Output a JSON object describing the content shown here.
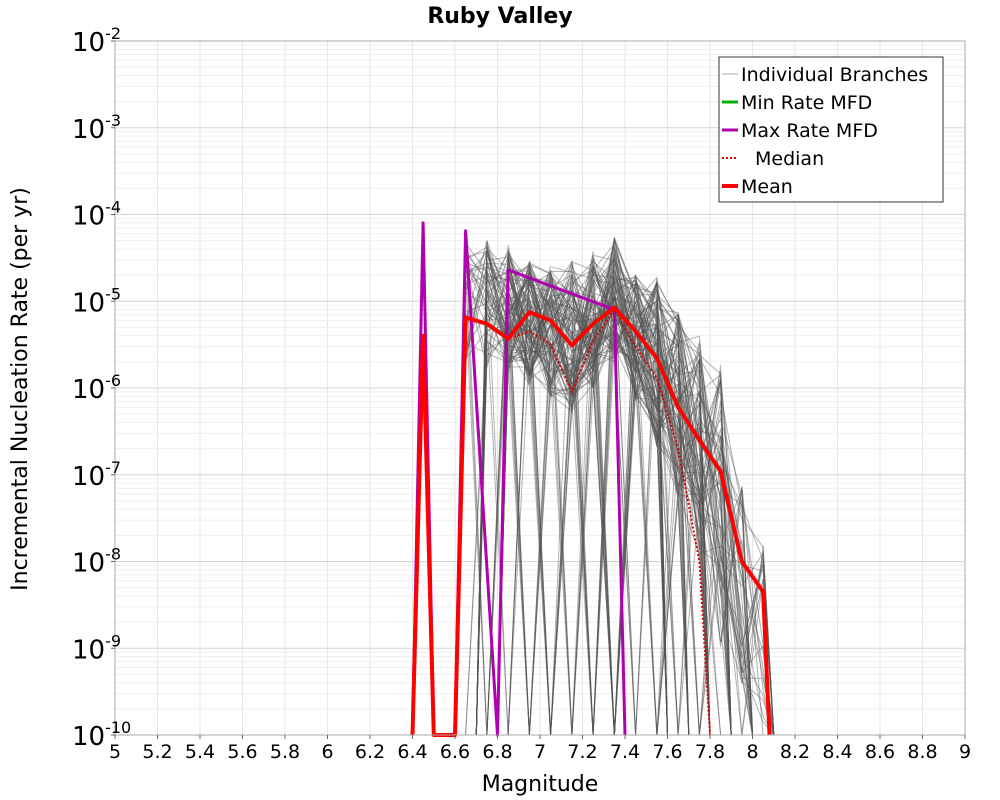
{
  "chart_data": {
    "type": "line",
    "title": "Ruby Valley",
    "xlabel": "Magnitude",
    "ylabel": "Incremental Nucleation Rate (per yr)",
    "xlim": [
      5,
      9
    ],
    "ylim_log10": [
      -10,
      -2
    ],
    "y_scale": "log",
    "grid": true,
    "legend_position": "top-right",
    "x_ticks": [
      5,
      5.2,
      5.4,
      5.6,
      5.8,
      6,
      6.2,
      6.4,
      6.6,
      6.8,
      7,
      7.2,
      7.4,
      7.6,
      7.8,
      8,
      8.2,
      8.4,
      8.6,
      8.8,
      9
    ],
    "y_tick_exponents": [
      -10,
      -9,
      -8,
      -7,
      -6,
      -5,
      -4,
      -3,
      -2
    ],
    "legend": [
      {
        "label": "Individual Branches",
        "color": "#aaaaaa",
        "style": "thin"
      },
      {
        "label": "Min Rate MFD",
        "color": "#00b000",
        "style": "solid"
      },
      {
        "label": "Max Rate MFD",
        "color": "#b000b0",
        "style": "solid"
      },
      {
        "label": "Median",
        "color": "#e00000",
        "style": "dotted"
      },
      {
        "label": "Mean",
        "color": "#ff0000",
        "style": "thick"
      }
    ],
    "series": [
      {
        "name": "Max Rate MFD",
        "color": "#b000b0",
        "points": [
          [
            6.4,
            1e-10
          ],
          [
            6.45,
            8e-05
          ],
          [
            6.5,
            1e-10
          ],
          [
            6.6,
            1e-10
          ],
          [
            6.65,
            6.5e-05
          ],
          [
            6.8,
            1e-10
          ],
          [
            6.85,
            2.3e-05
          ],
          [
            7.35,
            8e-06
          ],
          [
            7.4,
            1e-10
          ]
        ]
      },
      {
        "name": "Median",
        "color": "#e00000",
        "points": [
          [
            6.4,
            1e-10
          ],
          [
            6.45,
            4e-06
          ],
          [
            6.5,
            1e-10
          ],
          [
            6.6,
            1e-10
          ],
          [
            6.65,
            6.5e-06
          ],
          [
            6.75,
            5.5e-06
          ],
          [
            6.85,
            3.7e-06
          ],
          [
            6.95,
            4.5e-06
          ],
          [
            7.05,
            3.2e-06
          ],
          [
            7.15,
            9e-07
          ],
          [
            7.25,
            3.5e-06
          ],
          [
            7.35,
            8e-06
          ],
          [
            7.45,
            3e-06
          ],
          [
            7.55,
            1.3e-06
          ],
          [
            7.65,
            2e-07
          ],
          [
            7.75,
            1e-08
          ],
          [
            7.8,
            1e-10
          ]
        ]
      },
      {
        "name": "Mean",
        "color": "#ff0000",
        "points": [
          [
            6.4,
            1e-10
          ],
          [
            6.45,
            4e-06
          ],
          [
            6.5,
            1e-10
          ],
          [
            6.6,
            1e-10
          ],
          [
            6.65,
            6.5e-06
          ],
          [
            6.75,
            5.5e-06
          ],
          [
            6.85,
            3.7e-06
          ],
          [
            6.95,
            7.5e-06
          ],
          [
            7.05,
            6e-06
          ],
          [
            7.15,
            3.1e-06
          ],
          [
            7.25,
            5.5e-06
          ],
          [
            7.35,
            8.5e-06
          ],
          [
            7.45,
            4.5e-06
          ],
          [
            7.55,
            2.2e-06
          ],
          [
            7.65,
            6e-07
          ],
          [
            7.75,
            2.5e-07
          ],
          [
            7.85,
            1.1e-07
          ],
          [
            7.95,
            1e-08
          ],
          [
            8.05,
            4.5e-09
          ],
          [
            8.08,
            1e-10
          ]
        ]
      }
    ],
    "branch_envelope": {
      "name": "Individual Branches",
      "color": "#555555",
      "count": 120,
      "x_range": [
        6.65,
        8.05
      ],
      "upper": [
        [
          6.65,
          6e-05
        ],
        [
          6.85,
          5e-05
        ],
        [
          6.95,
          3e-05
        ],
        [
          7.05,
          2.5e-05
        ],
        [
          7.15,
          3e-05
        ],
        [
          7.25,
          4e-05
        ],
        [
          7.35,
          5.5e-05
        ],
        [
          7.45,
          2e-05
        ],
        [
          7.55,
          2e-05
        ],
        [
          7.65,
          8e-06
        ],
        [
          7.75,
          4e-06
        ],
        [
          7.85,
          2e-06
        ],
        [
          7.95,
          8e-08
        ],
        [
          8.05,
          2e-08
        ]
      ],
      "lower": [
        [
          6.65,
          2e-06
        ],
        [
          6.85,
          1.5e-06
        ],
        [
          6.95,
          1e-06
        ],
        [
          7.05,
          8e-07
        ],
        [
          7.15,
          5e-07
        ],
        [
          7.25,
          9e-07
        ],
        [
          7.35,
          2e-06
        ],
        [
          7.45,
          7e-07
        ],
        [
          7.55,
          2e-07
        ],
        [
          7.65,
          5e-08
        ],
        [
          7.75,
          1e-08
        ],
        [
          7.85,
          1e-09
        ],
        [
          7.95,
          3e-10
        ],
        [
          8.05,
          1e-10
        ]
      ]
    }
  }
}
